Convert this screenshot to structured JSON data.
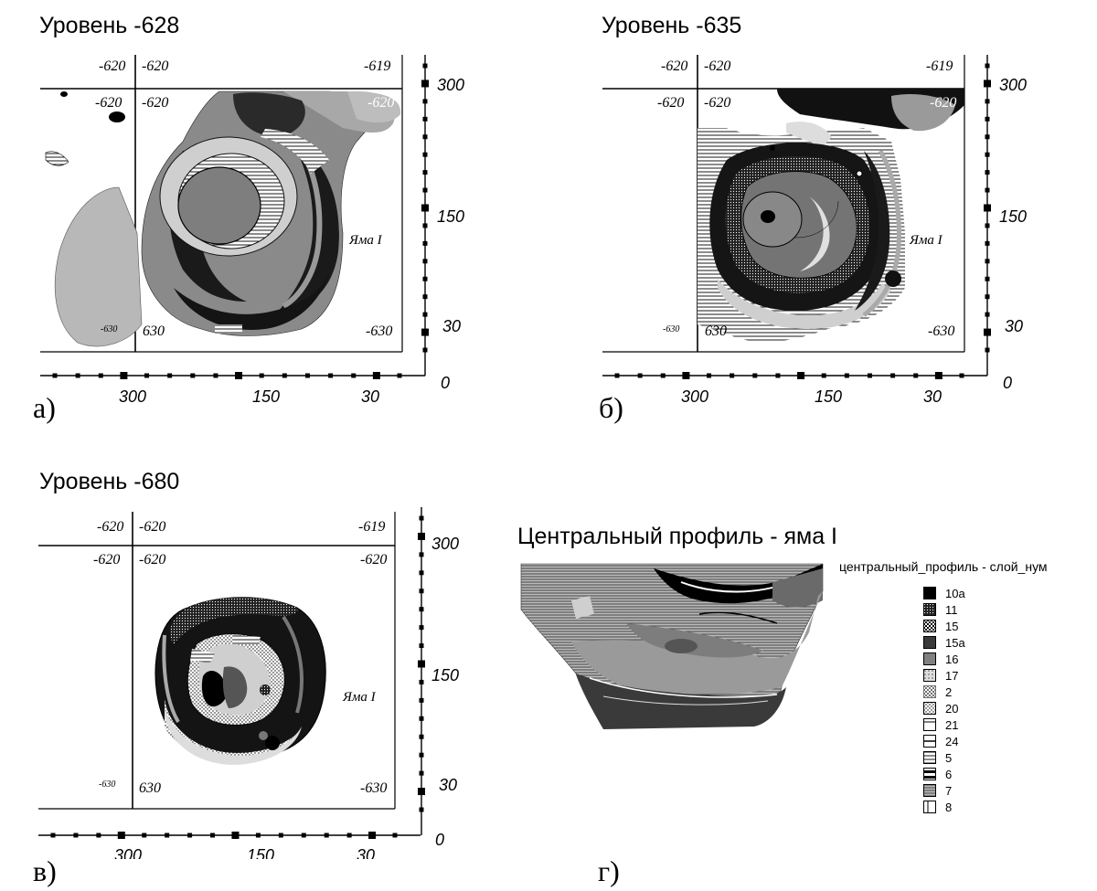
{
  "panels": {
    "a": {
      "title": "Уровень -628",
      "letter": "а)",
      "corners": {
        "top_left_outer": "-620",
        "top_left_inner": "-620",
        "top_right": "-619",
        "mid_left_outer": "-620",
        "mid_left_inner": "-620",
        "mid_right": "-620",
        "bottom_left_small": "-630",
        "bottom_left_inner": "630",
        "bottom_right": "-630"
      },
      "pit_label": "Яма I"
    },
    "b": {
      "title": "Уровень -635",
      "letter": "б)",
      "corners": {
        "top_left_outer": "-620",
        "top_left_inner": "-620",
        "top_right": "-619",
        "mid_left_outer": "-620",
        "mid_left_inner": "-620",
        "mid_right": "-620",
        "bottom_left_small": "-630",
        "bottom_left_inner": "630",
        "bottom_right": "-630"
      },
      "pit_label": "Яма I"
    },
    "v": {
      "title": "Уровень -680",
      "letter": "в)",
      "corners": {
        "top_left_outer": "-620",
        "top_left_inner": "-620",
        "top_right": "-619",
        "mid_left_outer": "-620",
        "mid_left_inner": "-620",
        "mid_right": "-620",
        "bottom_left_small": "-630",
        "bottom_left_inner": "630",
        "bottom_right": "-630"
      },
      "pit_label": "Яма I"
    }
  },
  "axis_ticks": {
    "x": [
      "300",
      "150",
      "30"
    ],
    "y": [
      "300",
      "150",
      "30"
    ],
    "origin": "0"
  },
  "profile": {
    "title": "Центральный профиль - яма I",
    "letter": "г)",
    "legend_title": "центральный_профиль - слой_нум",
    "legend": [
      {
        "label": "10а",
        "pattern": "solid-black"
      },
      {
        "label": "11",
        "pattern": "dense-dots"
      },
      {
        "label": "15",
        "pattern": "checker"
      },
      {
        "label": "15а",
        "pattern": "dark-hatch"
      },
      {
        "label": "16",
        "pattern": "grey-solid"
      },
      {
        "label": "17",
        "pattern": "light-dots"
      },
      {
        "label": "2",
        "pattern": "cross-dots"
      },
      {
        "label": "20",
        "pattern": "sparse-dots"
      },
      {
        "label": "21",
        "pattern": "half-white"
      },
      {
        "label": "24",
        "pattern": "split-lines"
      },
      {
        "label": "5",
        "pattern": "horizontal-lines"
      },
      {
        "label": "6",
        "pattern": "thick-lines"
      },
      {
        "label": "7",
        "pattern": "fine-lines"
      },
      {
        "label": "8",
        "pattern": "vertical-bar"
      }
    ]
  }
}
